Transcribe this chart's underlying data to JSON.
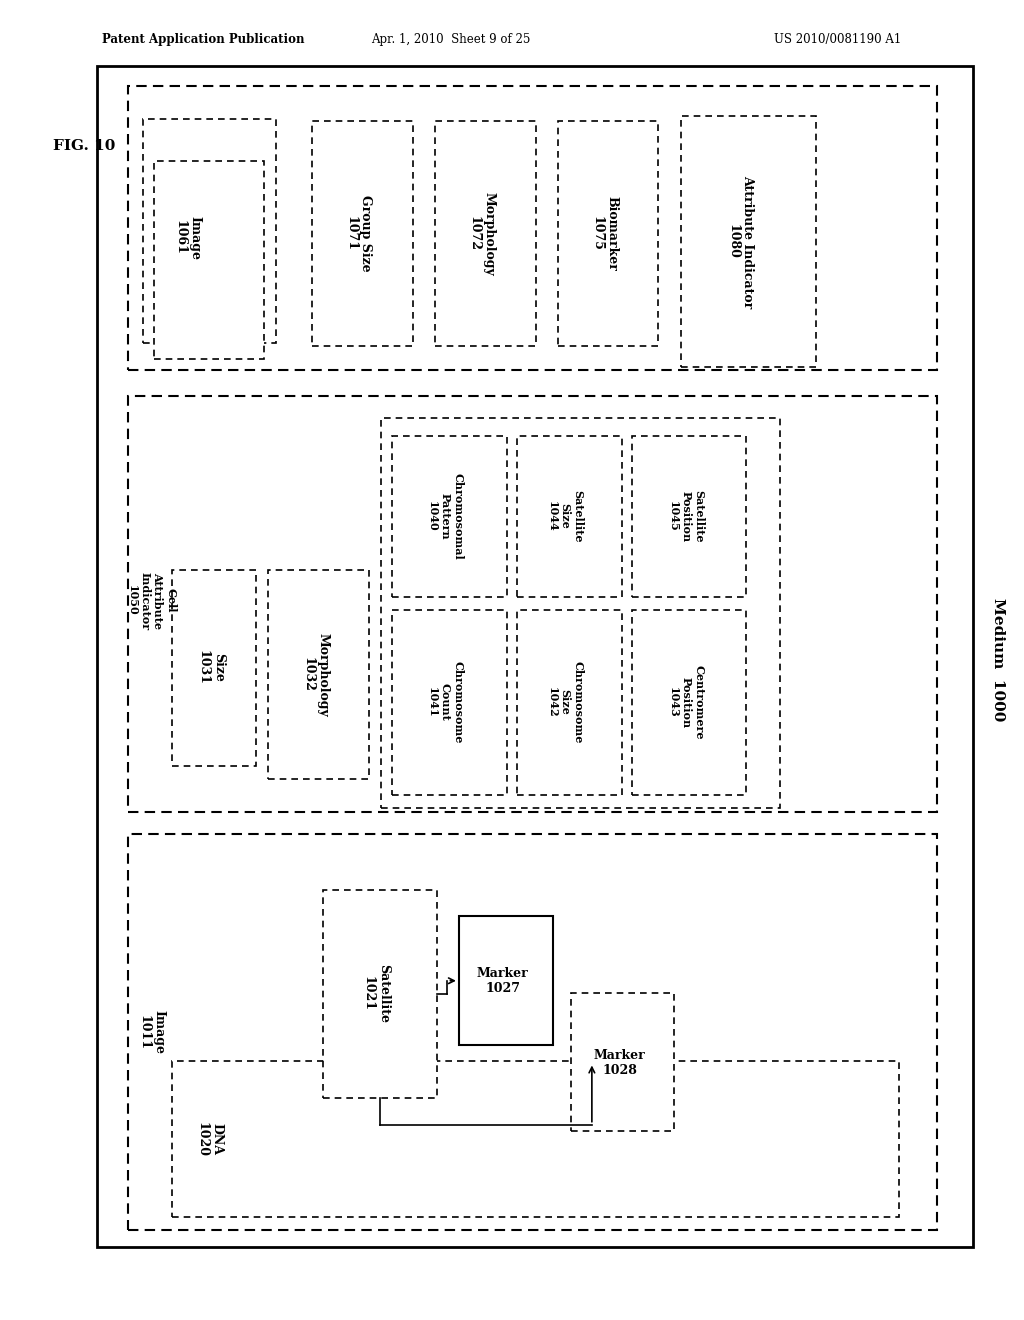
{
  "bg_color": "#ffffff",
  "fig_label": "FIG. 10",
  "header_left": "Patent Application Publication",
  "header_mid": "Apr. 1, 2010  Sheet 9 of 25",
  "header_right": "US 2010/0081190 A1",
  "medium_label": "Medium  1000"
}
